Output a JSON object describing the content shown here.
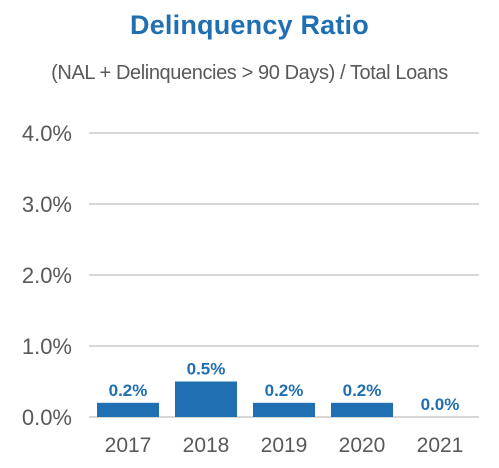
{
  "chart_data": {
    "type": "bar",
    "title": "Delinquency Ratio",
    "subtitle": "(NAL + Delinquencies > 90 Days) / Total Loans",
    "categories": [
      "2017",
      "2018",
      "2019",
      "2020",
      "2021"
    ],
    "values": [
      0.2,
      0.5,
      0.2,
      0.2,
      0.0
    ],
    "data_labels": [
      "0.2%",
      "0.5%",
      "0.2%",
      "0.2%",
      "0.0%"
    ],
    "yticks": [
      0,
      1,
      2,
      3,
      4
    ],
    "ytick_labels": [
      "0.0%",
      "1.0%",
      "2.0%",
      "3.0%",
      "4.0%"
    ],
    "ylim": [
      0,
      4
    ],
    "xlabel": "",
    "ylabel": "",
    "grid": true,
    "legend": "none",
    "bar_color": "#1f6fb2"
  }
}
